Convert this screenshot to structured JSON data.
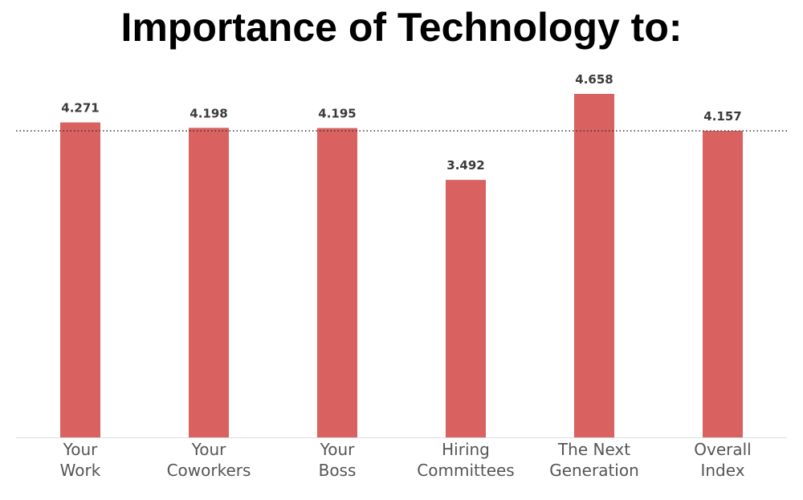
{
  "chart_data": {
    "type": "bar",
    "title": "Importance of Technology to:",
    "categories": [
      [
        "Your",
        "Work"
      ],
      [
        "Your",
        "Coworkers"
      ],
      [
        "Your",
        "Boss"
      ],
      [
        "Hiring",
        "Committees"
      ],
      [
        "The Next",
        "Generation"
      ],
      [
        "Overall",
        "Index"
      ]
    ],
    "values": [
      4.271,
      4.198,
      4.195,
      3.492,
      4.658,
      4.157
    ],
    "data_labels": [
      "4.271",
      "4.198",
      "4.195",
      "3.492",
      "4.658",
      "4.157"
    ],
    "reference_line": 4.157,
    "ylim": [
      0,
      5
    ],
    "grid": false,
    "xlabel": "",
    "ylabel": "",
    "colors": {
      "bar": "#d96160",
      "baseline": "#dcdcdc",
      "reference_line": "#333333"
    }
  }
}
